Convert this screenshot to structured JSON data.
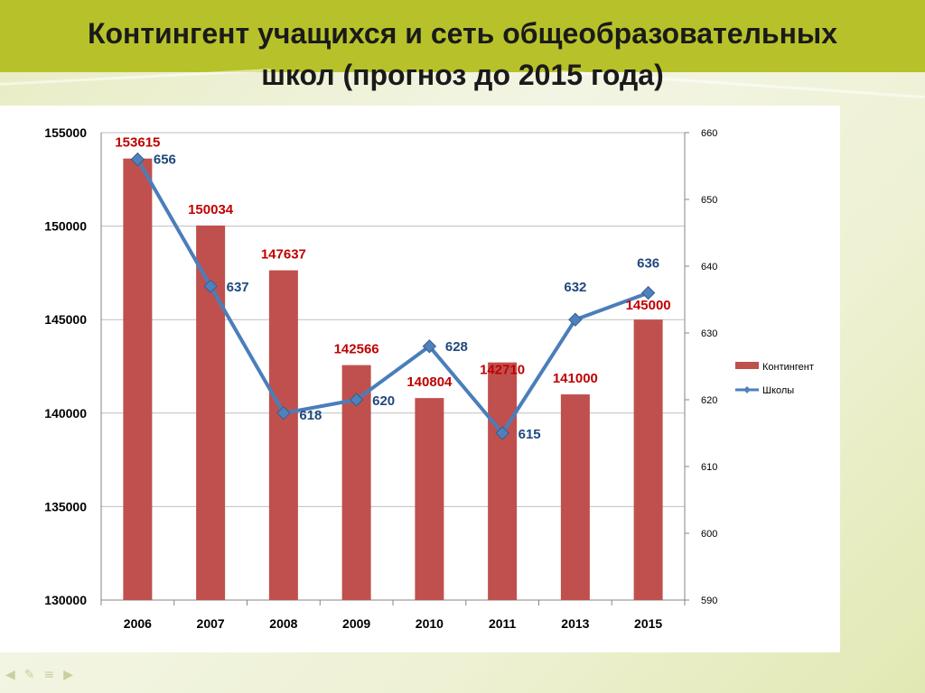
{
  "slide": {
    "title_line1": "Контингент учащихся и сеть общеобразовательных",
    "title_line2": "школ (прогноз до 2015 года)"
  },
  "colors": {
    "header": "#b7c22a",
    "bar": "#c0504d",
    "line": "#4a7ebb",
    "marker": "#4f81bd",
    "bar_label": "#c00000",
    "line_label": "#1f497d"
  },
  "nav_icons": [
    "back-icon",
    "pen-icon",
    "menu-icon",
    "forward-icon"
  ],
  "chart_data": {
    "type": "bar",
    "categories": [
      "2006",
      "2007",
      "2008",
      "2009",
      "2010",
      "2011",
      "2013",
      "2015"
    ],
    "series": [
      {
        "name": "Контингент",
        "type": "bar",
        "axis": "left",
        "values": [
          153615,
          150034,
          147637,
          142566,
          140804,
          142710,
          141000,
          145000
        ],
        "labels": [
          "153615",
          "150034",
          "147637",
          "142566",
          "140804",
          "142710",
          "141000",
          "145000"
        ]
      },
      {
        "name": "Школы",
        "type": "line",
        "axis": "right",
        "values": [
          656,
          637,
          618,
          620,
          628,
          615,
          632,
          636
        ],
        "labels": [
          "656",
          "637",
          "618",
          "620",
          "628",
          "615",
          "632",
          "636"
        ]
      }
    ],
    "y_left": {
      "min": 130000,
      "max": 155000,
      "ticks": [
        "130000",
        "135000",
        "140000",
        "145000",
        "150000",
        "155000"
      ]
    },
    "y_right": {
      "min": 590,
      "max": 660,
      "ticks": [
        "590",
        "600",
        "610",
        "620",
        "630",
        "640",
        "650",
        "660"
      ]
    },
    "legend": {
      "position": "right",
      "entries": [
        "Контингент",
        "Школы"
      ]
    },
    "grid": true
  }
}
